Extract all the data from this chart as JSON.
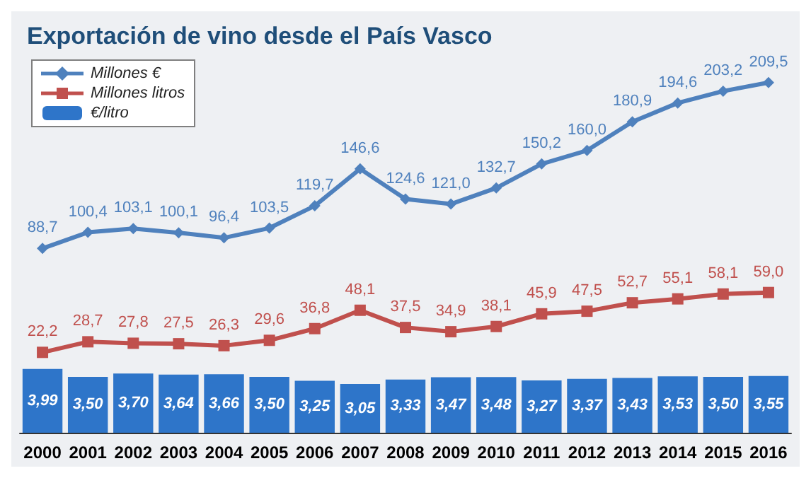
{
  "chart_data": [
    {
      "type": "line",
      "title": "Exportación de vino desde el País Vasco",
      "tick_labels": false,
      "legend": "top left",
      "categories": [
        "2000",
        "2001",
        "2002",
        "2003",
        "2004",
        "2005",
        "2006",
        "2007",
        "2008",
        "2009",
        "2010",
        "2011",
        "2012",
        "2013",
        "2014",
        "2015",
        "2016"
      ],
      "series": [
        {
          "name": "Millones €",
          "color": "#4f81bd",
          "marker": "diamond",
          "values": [
            88.7,
            100.4,
            103.1,
            100.1,
            96.4,
            103.5,
            119.7,
            146.6,
            124.6,
            121.0,
            132.7,
            150.2,
            160.0,
            180.9,
            194.6,
            203.2,
            209.5
          ],
          "value_labels": [
            "88,7",
            "100,4",
            "103,1",
            "100,1",
            "96,4",
            "103,5",
            "119,7",
            "146,6",
            "124,6",
            "121,0",
            "132,7",
            "150,2",
            "160,0",
            "180,9",
            "194,6",
            "203,2",
            "209,5"
          ]
        }
      ]
    },
    {
      "type": "line",
      "tick_labels": false,
      "legend": "top left",
      "categories": [
        "2000",
        "2001",
        "2002",
        "2003",
        "2004",
        "2005",
        "2006",
        "2007",
        "2008",
        "2009",
        "2010",
        "2011",
        "2012",
        "2013",
        "2014",
        "2015",
        "2016"
      ],
      "series": [
        {
          "name": "Millones litros",
          "color": "#c0504d",
          "marker": "square",
          "values": [
            22.2,
            28.7,
            27.8,
            27.5,
            26.3,
            29.6,
            36.8,
            48.1,
            37.5,
            34.9,
            38.1,
            45.9,
            47.5,
            52.7,
            55.1,
            58.1,
            59.0
          ],
          "value_labels": [
            "22,2",
            "28,7",
            "27,8",
            "27,5",
            "26,3",
            "29,6",
            "36,8",
            "48,1",
            "37,5",
            "34,9",
            "38,1",
            "45,9",
            "47,5",
            "52,7",
            "55,1",
            "58,1",
            "59,0"
          ]
        }
      ]
    },
    {
      "type": "bar",
      "tick_labels": "x",
      "legend": "top left",
      "categories": [
        "2000",
        "2001",
        "2002",
        "2003",
        "2004",
        "2005",
        "2006",
        "2007",
        "2008",
        "2009",
        "2010",
        "2011",
        "2012",
        "2013",
        "2014",
        "2015",
        "2016"
      ],
      "series": [
        {
          "name": "€/litro",
          "color": "#2e75c9",
          "values": [
            3.99,
            3.5,
            3.7,
            3.64,
            3.66,
            3.5,
            3.25,
            3.05,
            3.33,
            3.47,
            3.48,
            3.27,
            3.37,
            3.43,
            3.53,
            3.5,
            3.55
          ],
          "value_labels": [
            "3,99",
            "3,50",
            "3,70",
            "3,64",
            "3,66",
            "3,50",
            "3,25",
            "3,05",
            "3,33",
            "3,47",
            "3,48",
            "3,27",
            "3,37",
            "3,43",
            "3,53",
            "3,50",
            "3,55"
          ]
        }
      ]
    }
  ]
}
